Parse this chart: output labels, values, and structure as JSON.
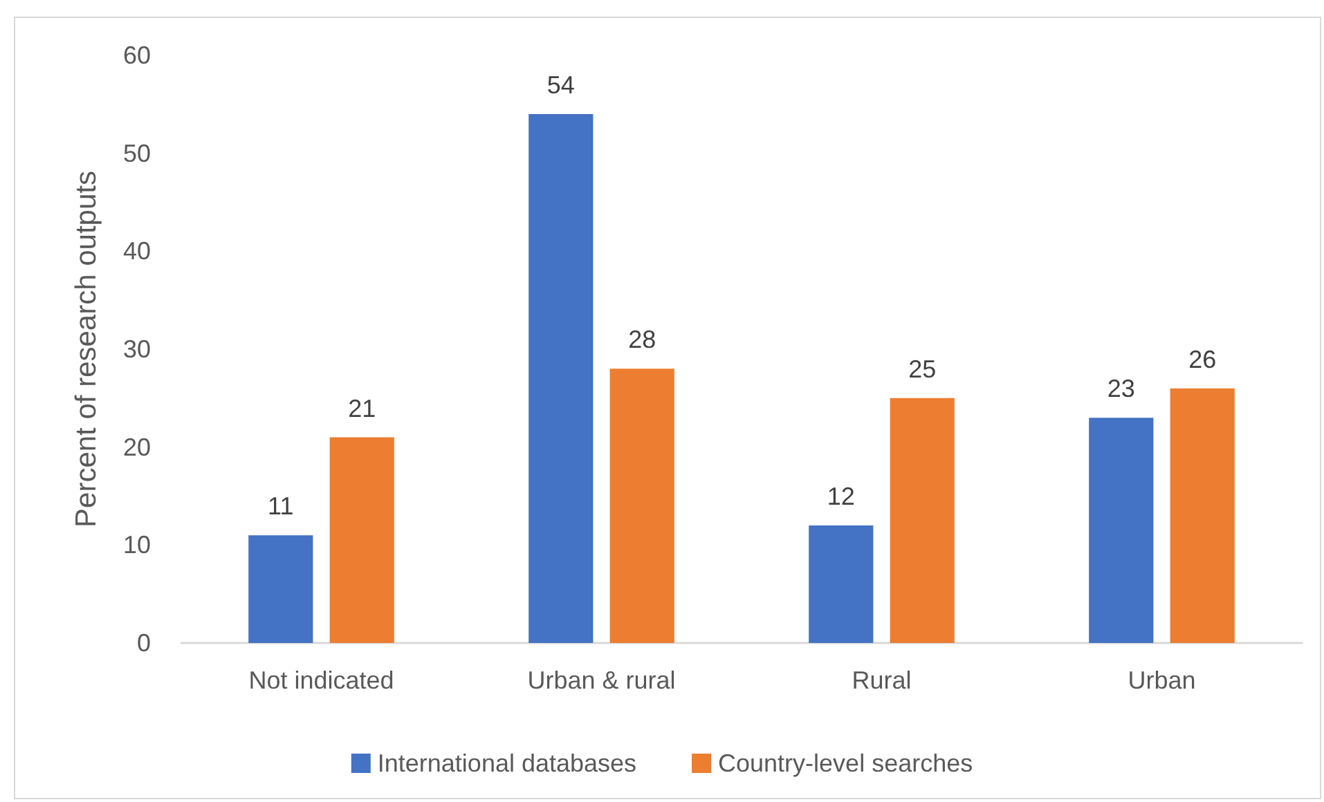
{
  "chart_data": {
    "type": "bar",
    "ylabel": "Percent of research outputs",
    "categories": [
      "Not indicated",
      "Urban & rural",
      "Rural",
      "Urban"
    ],
    "series": [
      {
        "name": "International databases",
        "color": "#4472c4",
        "values": [
          11,
          54,
          12,
          23
        ]
      },
      {
        "name": "Country-level searches",
        "color": "#ed7d31",
        "values": [
          21,
          28,
          25,
          26
        ]
      }
    ],
    "ylim": [
      0,
      60
    ],
    "yticks": [
      0,
      10,
      20,
      30,
      40,
      50,
      60
    ],
    "data_labels": true,
    "grid": false,
    "legend": "bottom"
  }
}
